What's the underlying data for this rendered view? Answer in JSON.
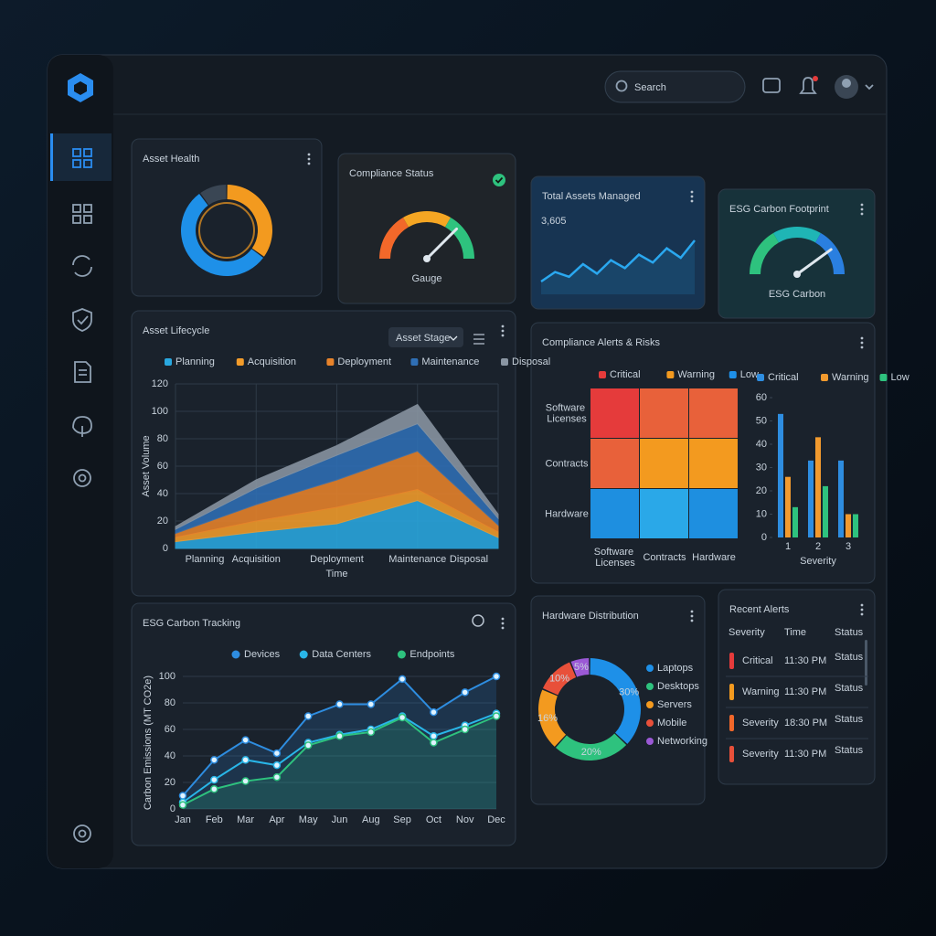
{
  "header": {
    "search": "Search"
  },
  "chart_data": [
    {
      "type": "donut",
      "title": "Asset Health",
      "values": [
        35,
        55,
        10
      ],
      "colors": [
        "#f39a1f",
        "#1e90e8",
        "#3a4654"
      ]
    },
    {
      "type": "gauge",
      "title": "Compliance Status",
      "label": "Gauge",
      "value": 75,
      "ylim": [
        0,
        100
      ],
      "colors": [
        "#f2682a",
        "#f5a623",
        "#2ec27e"
      ]
    },
    {
      "type": "sparkline",
      "title": "Total Assets Managed",
      "kpi": "3,605",
      "values": [
        18,
        30,
        24,
        40,
        28,
        45,
        35,
        52,
        42,
        60,
        48,
        70
      ],
      "color": "#2aa8f0"
    },
    {
      "type": "gauge",
      "title": "ESG Carbon Footprint",
      "label": "ESG Carbon",
      "value": 80,
      "ylim": [
        0,
        100
      ],
      "colors": [
        "#2ec27e",
        "#1fb5b5",
        "#2a7fe0"
      ]
    },
    {
      "type": "stacked_area",
      "title": "Asset Lifecycle",
      "control": "Asset Stage",
      "categories": [
        "Planning",
        "Acquisition",
        "Deployment",
        "Maintenance",
        "Disposal"
      ],
      "series": [
        {
          "name": "Planning",
          "color": "#29a8e0",
          "values": [
            5,
            12,
            18,
            35,
            8
          ]
        },
        {
          "name": "Acquisition",
          "color": "#f39c2a",
          "values": [
            3,
            8,
            12,
            8,
            4
          ]
        },
        {
          "name": "Deployment",
          "color": "#e8832a",
          "values": [
            3,
            12,
            20,
            28,
            5
          ]
        },
        {
          "name": "Maintenance",
          "color": "#2f6fb5",
          "values": [
            3,
            12,
            18,
            20,
            5
          ]
        },
        {
          "name": "Disposal",
          "color": "#8a96a3",
          "values": [
            2,
            6,
            7,
            14,
            3
          ]
        }
      ],
      "ylim": [
        0,
        120
      ],
      "yticks": [
        0,
        20,
        40,
        60,
        80,
        100,
        120
      ],
      "ylabel": "Asset Volume",
      "xlabel": "Time",
      "grid": true
    },
    {
      "type": "heatmap",
      "title": "Compliance Alerts & Risks",
      "rows": [
        "Software Licenses",
        "Contracts",
        "Hardware"
      ],
      "columns": [
        "Software Licenses",
        "Contracts",
        "Hardware"
      ],
      "legend": [
        {
          "name": "Critical",
          "color": "#e53b3b"
        },
        {
          "name": "Warning",
          "color": "#f39a1f"
        },
        {
          "name": "Low",
          "color": "#1e90e8"
        }
      ],
      "cells": [
        [
          "#e53b3b",
          "#e8613a",
          "#e8613a"
        ],
        [
          "#e8613a",
          "#f39a1f",
          "#f39a1f"
        ],
        [
          "#1e8fe0",
          "#2aa8e8",
          "#1e8fe0"
        ]
      ]
    },
    {
      "type": "bar",
      "categories": [
        "1",
        "2",
        "3"
      ],
      "series": [
        {
          "name": "Critical",
          "color": "#2e8de0",
          "values": [
            53,
            33,
            33
          ]
        },
        {
          "name": "Warning",
          "color": "#f29a2e",
          "values": [
            26,
            43,
            10
          ]
        },
        {
          "name": "Low",
          "color": "#2ec27e",
          "values": [
            13,
            22,
            10
          ]
        }
      ],
      "ylim": [
        0,
        60
      ],
      "yticks": [
        0,
        10,
        20,
        30,
        40,
        50,
        60
      ],
      "xlabel": "Severity"
    },
    {
      "type": "line",
      "title": "ESG Carbon Tracking",
      "categories": [
        "Jan",
        "Feb",
        "Mar",
        "Apr",
        "May",
        "Jun",
        "Aug",
        "Sep",
        "Oct",
        "Nov",
        "Dec"
      ],
      "series": [
        {
          "name": "Devices",
          "color": "#2e8de0",
          "values": [
            10,
            37,
            52,
            42,
            70,
            79,
            79,
            98,
            73,
            88,
            100
          ]
        },
        {
          "name": "Data Centers",
          "color": "#29b6e8",
          "values": [
            5,
            22,
            37,
            33,
            50,
            56,
            60,
            70,
            55,
            63,
            72
          ]
        },
        {
          "name": "Endpoints",
          "color": "#2ec27e",
          "values": [
            3,
            15,
            21,
            24,
            48,
            55,
            58,
            69,
            50,
            60,
            70
          ]
        }
      ],
      "ylim": [
        0,
        100
      ],
      "yticks": [
        0,
        20,
        40,
        60,
        80,
        100
      ],
      "ylabel": "Carbon Emissions (MT CO2e)",
      "grid": true
    },
    {
      "type": "donut",
      "title": "Hardware Distribution",
      "categories": [
        "Laptops",
        "Desktops",
        "Servers",
        "Mobile",
        "Networking"
      ],
      "values": [
        30,
        20,
        16,
        10,
        5
      ],
      "value_labels": [
        "30%",
        "20%",
        "16%",
        "10%",
        "5%"
      ],
      "colors": [
        "#1e90e8",
        "#2ec27e",
        "#f39a1f",
        "#e8503a",
        "#9b59d6"
      ]
    }
  ],
  "recent_alerts": {
    "title": "Recent Alerts",
    "columns": [
      "Severity",
      "Time",
      "Status"
    ],
    "rows": [
      [
        "Critical",
        "11:30 PM",
        "Status"
      ],
      [
        "Warning",
        "11:30 PM",
        "Status"
      ],
      [
        "Severity",
        "18:30 PM",
        "Status"
      ],
      [
        "Severity",
        "11:30 PM",
        "Status"
      ]
    ],
    "row_colors": [
      "#e53b3b",
      "#f39a1f",
      "#f2682a",
      "#e8503a"
    ]
  }
}
